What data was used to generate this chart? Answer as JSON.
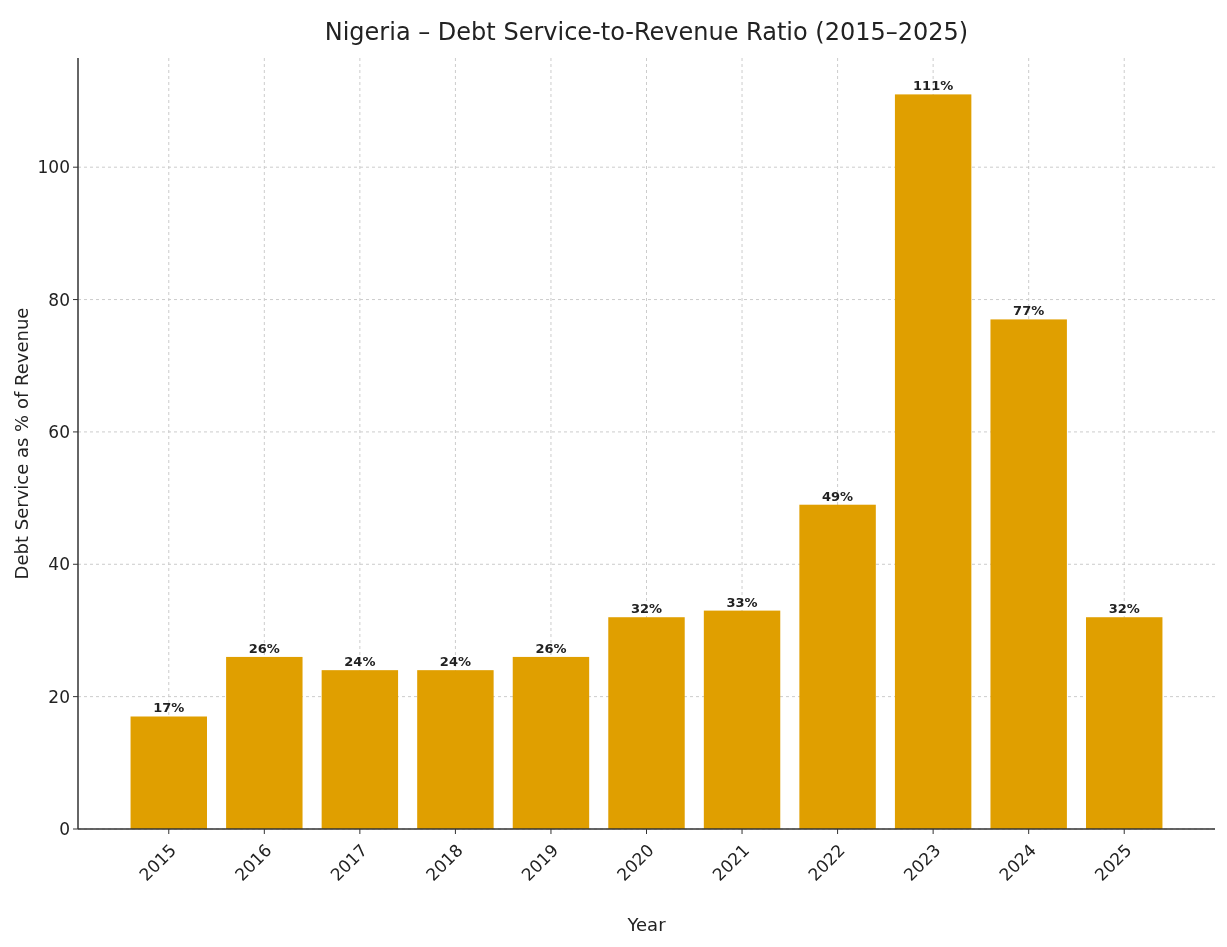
{
  "chart_data": {
    "type": "bar",
    "title": "Nigeria – Debt Service-to-Revenue Ratio (2015–2025)",
    "xlabel": "Year",
    "ylabel": "Debt Service as % of Revenue",
    "categories": [
      "2015",
      "2016",
      "2017",
      "2018",
      "2019",
      "2020",
      "2021",
      "2022",
      "2023",
      "2024",
      "2025"
    ],
    "values": [
      17,
      26,
      24,
      24,
      26,
      32,
      33,
      49,
      111,
      77,
      32
    ],
    "value_labels": [
      "17%",
      "26%",
      "24%",
      "24%",
      "26%",
      "32%",
      "33%",
      "49%",
      "111%",
      "77%",
      "32%"
    ],
    "color": "#e09f00",
    "ylim": [
      0,
      116.5
    ],
    "yticks": [
      0,
      20,
      40,
      60,
      80,
      100
    ],
    "grid": true
  }
}
